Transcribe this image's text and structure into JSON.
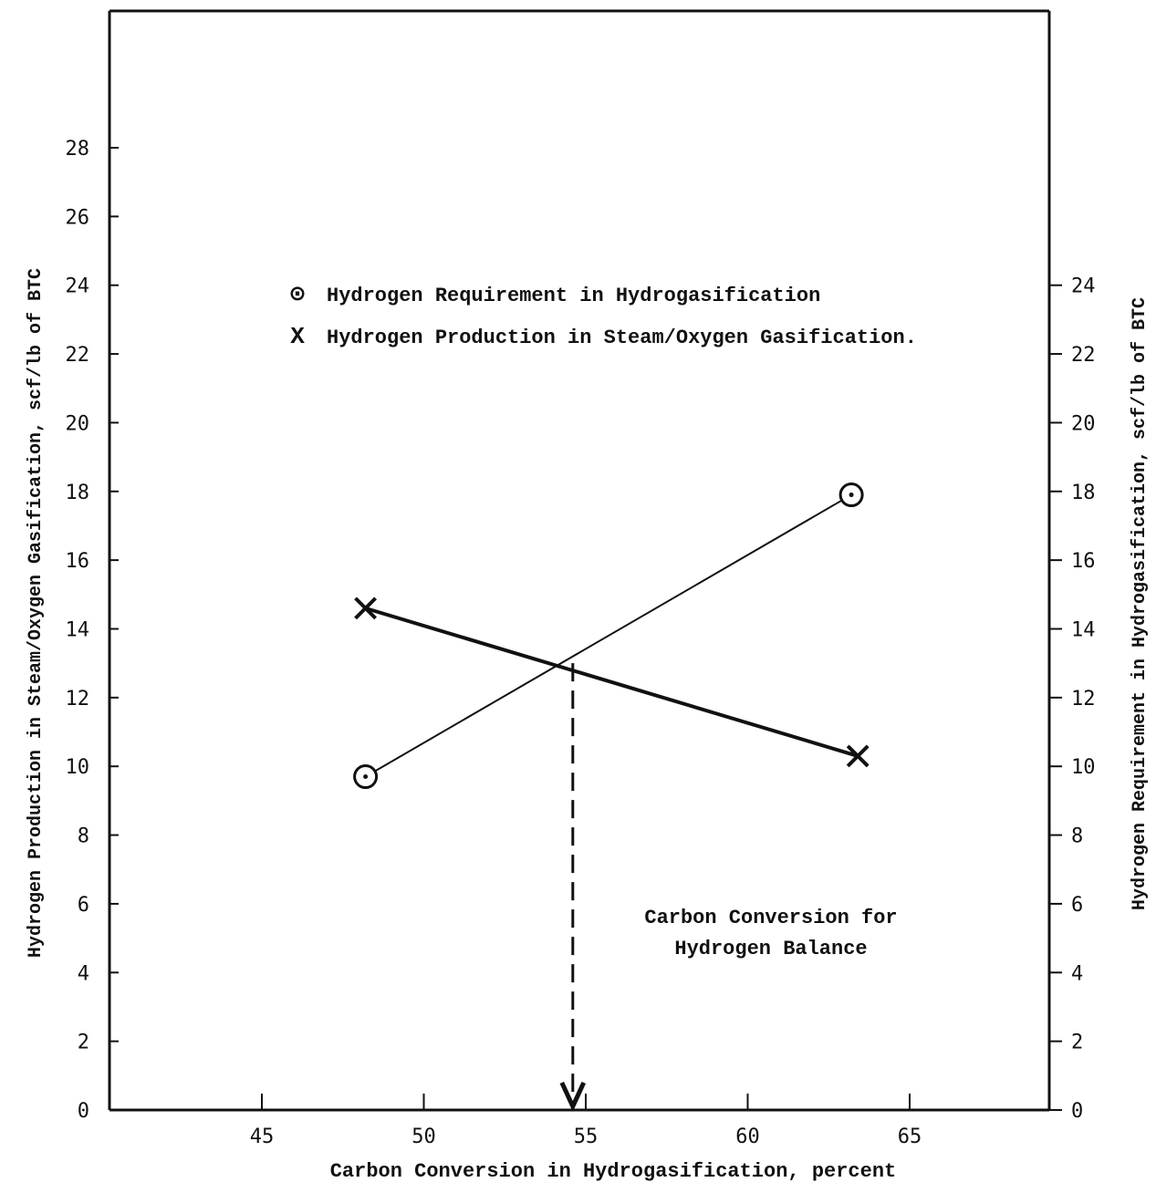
{
  "chart_data": {
    "type": "line",
    "title": "",
    "xlabel": "Carbon Conversion in Hydrogasification, percent",
    "ylabel_left": "Hydrogen Production in Steam/Oxygen Gasification, scf/lb of BTC",
    "ylabel_right": "Hydrogen Requirement in Hydrogasification, scf/lb of BTC",
    "xlim": [
      41,
      69
    ],
    "ylim": [
      0,
      32
    ],
    "x_ticks": [
      45,
      50,
      55,
      60,
      65
    ],
    "y_ticks_left": [
      0,
      2,
      4,
      6,
      8,
      10,
      12,
      14,
      16,
      18,
      20,
      22,
      24,
      26,
      28
    ],
    "y_ticks_right": [
      0,
      2,
      4,
      6,
      8,
      10,
      12,
      14,
      16,
      18,
      20,
      22,
      24
    ],
    "grid": false,
    "legend_position": "top-center",
    "series": [
      {
        "name": "Hydrogen Requirement in Hydrogasification",
        "marker": "circle-dot",
        "legend_symbol": "⊙",
        "x": [
          48.2,
          63.2
        ],
        "y": [
          9.7,
          17.9
        ]
      },
      {
        "name": "Hydrogen Production in Steam/Oxygen Gasification.",
        "marker": "x",
        "legend_symbol": "X",
        "x": [
          48.2,
          63.4
        ],
        "y": [
          14.6,
          10.3
        ]
      }
    ],
    "annotation": {
      "lines": [
        "Carbon Conversion for",
        "Hydrogen Balance"
      ],
      "x": 54.6,
      "y": 13.0,
      "style": "dashed-arrow-down"
    }
  }
}
